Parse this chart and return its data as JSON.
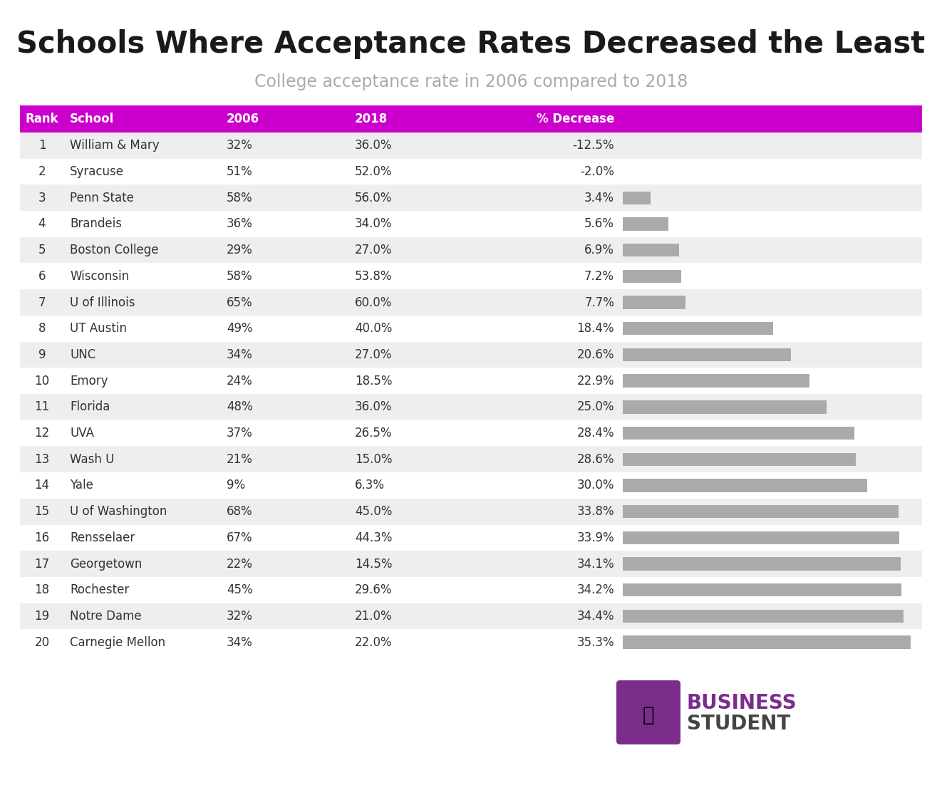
{
  "title": "Schools Where Acceptance Rates Decreased the Least",
  "subtitle": "College acceptance rate in 2006 compared to 2018",
  "rows": [
    [
      1,
      "William & Mary",
      "32%",
      "36.0%",
      "-12.5%",
      -12.5
    ],
    [
      2,
      "Syracuse",
      "51%",
      "52.0%",
      "-2.0%",
      -2.0
    ],
    [
      3,
      "Penn State",
      "58%",
      "56.0%",
      "3.4%",
      3.4
    ],
    [
      4,
      "Brandeis",
      "36%",
      "34.0%",
      "5.6%",
      5.6
    ],
    [
      5,
      "Boston College",
      "29%",
      "27.0%",
      "6.9%",
      6.9
    ],
    [
      6,
      "Wisconsin",
      "58%",
      "53.8%",
      "7.2%",
      7.2
    ],
    [
      7,
      "U of Illinois",
      "65%",
      "60.0%",
      "7.7%",
      7.7
    ],
    [
      8,
      "UT Austin",
      "49%",
      "40.0%",
      "18.4%",
      18.4
    ],
    [
      9,
      "UNC",
      "34%",
      "27.0%",
      "20.6%",
      20.6
    ],
    [
      10,
      "Emory",
      "24%",
      "18.5%",
      "22.9%",
      22.9
    ],
    [
      11,
      "Florida",
      "48%",
      "36.0%",
      "25.0%",
      25.0
    ],
    [
      12,
      "UVA",
      "37%",
      "26.5%",
      "28.4%",
      28.4
    ],
    [
      13,
      "Wash U",
      "21%",
      "15.0%",
      "28.6%",
      28.6
    ],
    [
      14,
      "Yale",
      "9%",
      "6.3%",
      "30.0%",
      30.0
    ],
    [
      15,
      "U of Washington",
      "68%",
      "45.0%",
      "33.8%",
      33.8
    ],
    [
      16,
      "Rensselaer",
      "67%",
      "44.3%",
      "33.9%",
      33.9
    ],
    [
      17,
      "Georgetown",
      "22%",
      "14.5%",
      "34.1%",
      34.1
    ],
    [
      18,
      "Rochester",
      "45%",
      "29.6%",
      "34.2%",
      34.2
    ],
    [
      19,
      "Notre Dame",
      "32%",
      "21.0%",
      "34.4%",
      34.4
    ],
    [
      20,
      "Carnegie Mellon",
      "34%",
      "22.0%",
      "35.3%",
      35.3
    ]
  ],
  "header_bg": "#cc00cc",
  "header_text_color": "#ffffff",
  "odd_row_bg": "#eeeeee",
  "even_row_bg": "#ffffff",
  "bar_color": "#aaaaaa",
  "bar_max": 35.3,
  "title_color": "#1a1a1a",
  "subtitle_color": "#aaaaaa",
  "title_fontsize": 30,
  "subtitle_fontsize": 17,
  "header_fontsize": 12,
  "row_fontsize": 12,
  "logo_purple": "#7b2d8b",
  "logo_text_color": "#555555"
}
